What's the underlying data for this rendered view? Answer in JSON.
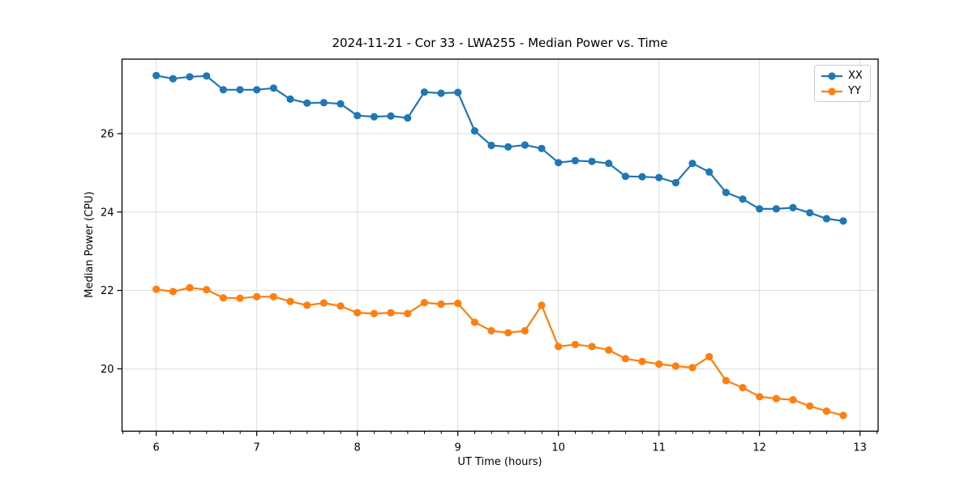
{
  "chart_data": {
    "type": "line",
    "title": "2024-11-21 - Cor 33 - LWA255 - Median Power vs. Time",
    "xlabel": "UT Time (hours)",
    "ylabel": "Median Power (CPU)",
    "xlim": [
      5.66,
      13.18
    ],
    "ylim": [
      18.41,
      27.9
    ],
    "xticks": [
      6,
      7,
      8,
      9,
      10,
      11,
      12,
      13
    ],
    "yticks": [
      20,
      22,
      24,
      26
    ],
    "x_minor_tick_step": 0.1667,
    "grid": true,
    "legend_position": "upper right",
    "x": [
      6.0,
      6.167,
      6.333,
      6.5,
      6.667,
      6.833,
      7.0,
      7.167,
      7.333,
      7.5,
      7.667,
      7.833,
      8.0,
      8.167,
      8.333,
      8.5,
      8.667,
      8.833,
      9.0,
      9.167,
      9.333,
      9.5,
      9.667,
      9.833,
      10.0,
      10.167,
      10.333,
      10.5,
      10.667,
      10.833,
      11.0,
      11.167,
      11.333,
      11.5,
      11.667,
      11.833,
      12.0,
      12.167,
      12.333,
      12.5,
      12.667,
      12.833
    ],
    "series": [
      {
        "name": "XX",
        "color": "#1f77b4",
        "values": [
          27.48,
          27.4,
          27.45,
          27.47,
          27.12,
          27.12,
          27.12,
          27.16,
          26.88,
          26.78,
          26.79,
          26.76,
          26.46,
          26.43,
          26.45,
          26.4,
          27.06,
          27.03,
          27.05,
          26.07,
          25.7,
          25.66,
          25.71,
          25.62,
          25.26,
          25.31,
          25.29,
          25.24,
          24.91,
          24.9,
          24.88,
          24.75,
          25.24,
          25.02,
          24.5,
          24.33,
          24.08,
          24.08,
          24.11,
          23.98,
          23.83,
          23.77
        ]
      },
      {
        "name": "YY",
        "color": "#ff7f0e",
        "values": [
          22.03,
          21.97,
          22.07,
          22.02,
          21.81,
          21.8,
          21.84,
          21.84,
          21.72,
          21.62,
          21.68,
          21.6,
          21.43,
          21.41,
          21.43,
          21.41,
          21.69,
          21.65,
          21.67,
          21.19,
          20.97,
          20.92,
          20.97,
          21.62,
          20.57,
          20.62,
          20.57,
          20.48,
          20.26,
          20.19,
          20.12,
          20.07,
          20.03,
          20.31,
          19.7,
          19.52,
          19.29,
          19.24,
          19.21,
          19.05,
          18.92,
          18.81
        ]
      }
    ]
  },
  "style": {
    "grid_color": "#dcdcdc",
    "spine_color": "#000000",
    "tick_color": "#000000",
    "background": "#ffffff"
  }
}
